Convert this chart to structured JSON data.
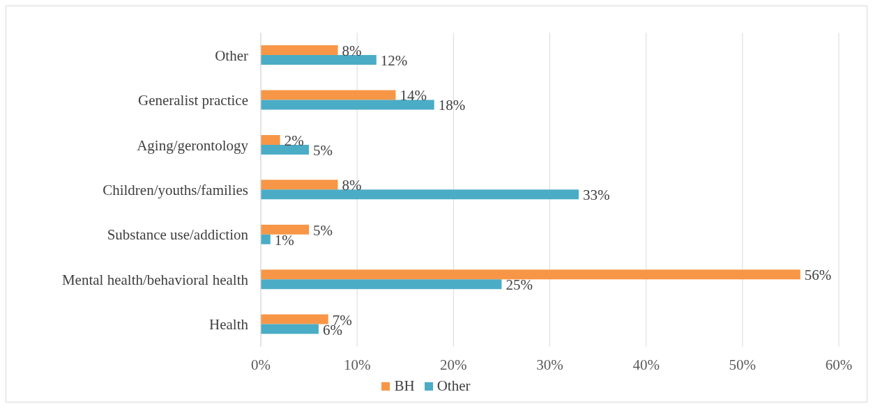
{
  "chart_data": {
    "type": "bar",
    "orientation": "horizontal",
    "categories": [
      "Other",
      "Generalist practice",
      "Aging/gerontology",
      "Children/youths/families",
      "Substance use/addiction",
      "Mental health/behavioral health",
      "Health"
    ],
    "series": [
      {
        "name": "BH",
        "color": "#f79646",
        "values": [
          8,
          14,
          2,
          8,
          5,
          56,
          7
        ],
        "value_labels": [
          "8%",
          "14%",
          "2%",
          "8%",
          "5%",
          "56%",
          "7%"
        ]
      },
      {
        "name": "Other",
        "color": "#4bacc6",
        "values": [
          12,
          18,
          5,
          33,
          1,
          25,
          6
        ],
        "value_labels": [
          "12%",
          "18%",
          "5%",
          "33%",
          "1%",
          "25%",
          "6%"
        ]
      }
    ],
    "xlim": [
      0,
      60
    ],
    "xticks": [
      {
        "value": 0,
        "label": "0%"
      },
      {
        "value": 10,
        "label": "10%"
      },
      {
        "value": 20,
        "label": "20%"
      },
      {
        "value": 30,
        "label": "30%"
      },
      {
        "value": 40,
        "label": "40%"
      },
      {
        "value": 50,
        "label": "50%"
      },
      {
        "value": 60,
        "label": "60%"
      }
    ],
    "grid": "x",
    "legend": "bottom"
  }
}
